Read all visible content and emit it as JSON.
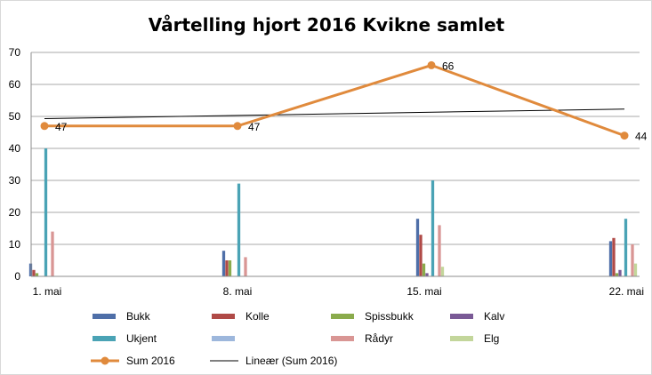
{
  "chart_data": {
    "type": "bar",
    "title": "Vårtelling hjort 2016 Kvikne samlet",
    "categories": [
      "1. mai",
      "8. mai",
      "15. mai",
      "22. mai"
    ],
    "ylim": [
      0,
      70
    ],
    "yticks": [
      0,
      10,
      20,
      30,
      40,
      50,
      60,
      70
    ],
    "grid": true,
    "legend_position": "bottom",
    "series": [
      {
        "name": "Bukk",
        "type": "bar",
        "color": "#4f6fa8",
        "values": [
          4,
          8,
          18,
          11
        ]
      },
      {
        "name": "Kolle",
        "type": "bar",
        "color": "#b04a47",
        "values": [
          2,
          5,
          13,
          12
        ]
      },
      {
        "name": "Spissbukk",
        "type": "bar",
        "color": "#8aab4c",
        "values": [
          1,
          5,
          4,
          1
        ]
      },
      {
        "name": "Kalv",
        "type": "bar",
        "color": "#7a5a96",
        "values": [
          0,
          0,
          1,
          2
        ]
      },
      {
        "name": "Ukjent",
        "type": "bar",
        "color": "#4aa3b5",
        "values": [
          40,
          29,
          30,
          18
        ]
      },
      {
        "name": "",
        "type": "bar",
        "color": "#9db7dc",
        "values": [
          0,
          0,
          0,
          0
        ]
      },
      {
        "name": "Rådyr",
        "type": "bar",
        "color": "#d99694",
        "values": [
          14,
          6,
          16,
          10
        ]
      },
      {
        "name": "Elg",
        "type": "bar",
        "color": "#c3d69b",
        "values": [
          0,
          0,
          3,
          4
        ]
      },
      {
        "name": "Sum 2016",
        "type": "line",
        "color": "#e08a3c",
        "values": [
          47,
          47,
          66,
          44
        ],
        "data_labels": [
          "47",
          "47",
          "66",
          "44"
        ]
      },
      {
        "name": "Lineær (Sum 2016)",
        "type": "trendline",
        "color": "#000000",
        "values": [
          49.3,
          50.3,
          51.3,
          52.3
        ]
      }
    ]
  }
}
